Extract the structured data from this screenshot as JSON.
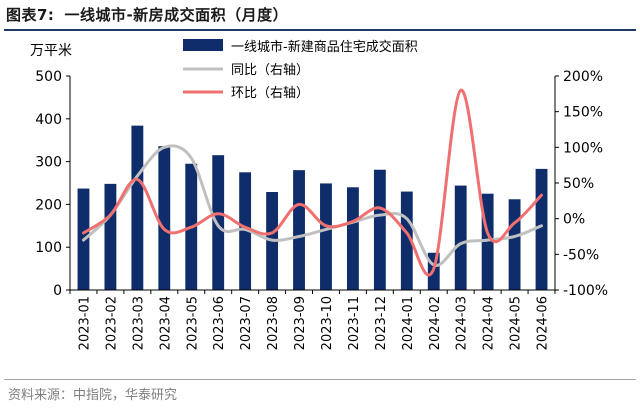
{
  "figure": {
    "label": "图表7:",
    "title": "一线城市-新房成交面积（月度）",
    "source": "资料来源：中指院，华泰研究"
  },
  "colors": {
    "bar": "#0f2d6b",
    "yoy_line": "#c0c0c0",
    "mom_line": "#f07070",
    "title_rule": "#1f3864"
  },
  "chart_data": {
    "type": "bar+line",
    "categories": [
      "2023-01",
      "2023-02",
      "2023-03",
      "2023-04",
      "2023-05",
      "2023-06",
      "2023-07",
      "2023-08",
      "2023-09",
      "2023-10",
      "2023-11",
      "2023-12",
      "2024-01",
      "2024-02",
      "2024-03",
      "2024-04",
      "2024-05",
      "2024-06"
    ],
    "y_left_label": "万平米",
    "y_left_ticks": [
      "0",
      "100",
      "200",
      "300",
      "400",
      "500"
    ],
    "ylim_left": [
      0,
      500
    ],
    "y_right_ticks": [
      "-100%",
      "-50%",
      "0%",
      "50%",
      "100%",
      "150%",
      "200%"
    ],
    "ylim_right": [
      -100,
      200
    ],
    "legend_position": "top-right",
    "grid": false,
    "series": [
      {
        "name": "一线城市-新建商品住宅成交面积",
        "kind": "bar",
        "axis": "left",
        "values": [
          237,
          248,
          384,
          336,
          295,
          315,
          275,
          229,
          280,
          249,
          240,
          281,
          230,
          87,
          244,
          225,
          212,
          283
        ]
      },
      {
        "name": "同比（右轴）",
        "kind": "line",
        "axis": "right",
        "values": [
          -30,
          5,
          60,
          100,
          85,
          -10,
          -15,
          -30,
          -25,
          -15,
          -5,
          5,
          0,
          -65,
          -35,
          -30,
          -25,
          -10
        ]
      },
      {
        "name": "环比（右轴）",
        "kind": "line",
        "axis": "right",
        "values": [
          -20,
          5,
          55,
          -15,
          -12,
          7,
          -12,
          -20,
          20,
          -10,
          -4,
          15,
          -20,
          -70,
          180,
          -20,
          -6,
          33
        ]
      }
    ]
  }
}
